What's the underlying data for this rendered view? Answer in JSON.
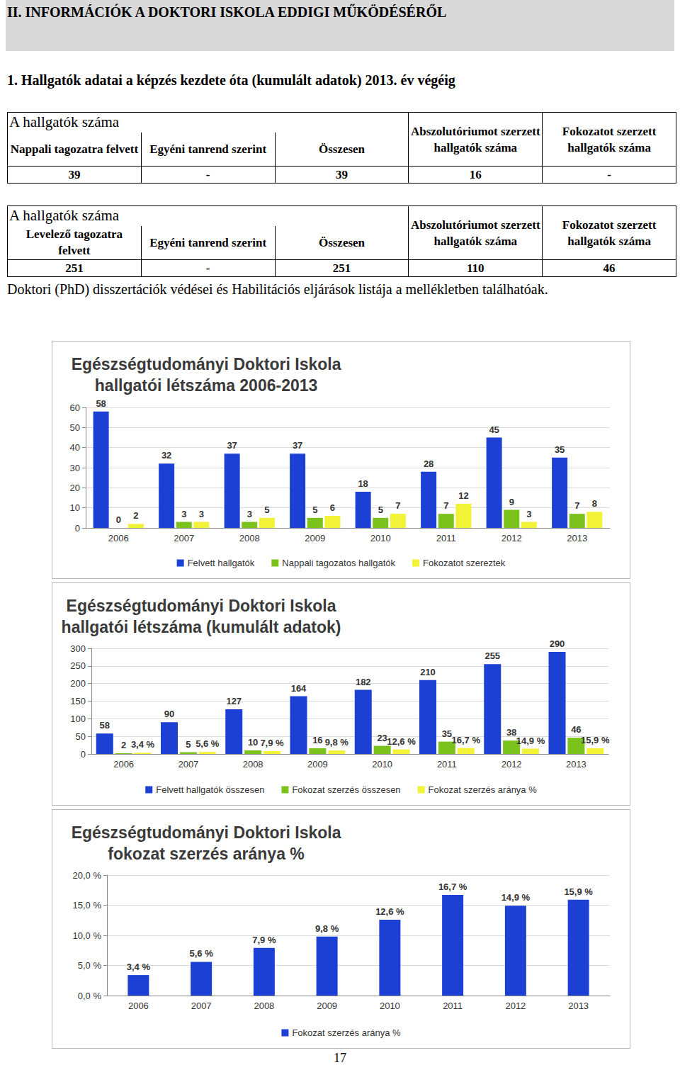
{
  "header": {
    "title": "II. INFORMÁCIÓK A DOKTORI ISKOLA EDDIGI MŰKÖDÉSÉRŐL"
  },
  "section_title": "1. Hallgatók adatai a képzés kezdete óta (kumulált adatok) 2013. év végéig",
  "tables": [
    {
      "title": "A hallgatók száma",
      "columns": [
        "Nappali tagozatra felvett",
        "Egyéni tanrend szerint",
        "Összesen",
        "Abszolutóriumot szerzett hallgatók száma",
        "Fokozatot szerzett hallgatók száma"
      ],
      "rows": [
        [
          "39",
          "-",
          "39",
          "16",
          "-"
        ]
      ]
    },
    {
      "title": "A hallgatók száma",
      "columns": [
        "Levelező tagozatra felvett",
        "Egyéni tanrend szerint",
        "Összesen",
        "Abszolutóriumot szerzett hallgatók száma",
        "Fokozatot szerzett hallgatók száma"
      ],
      "rows": [
        [
          "251",
          "-",
          "251",
          "110",
          "46"
        ]
      ]
    }
  ],
  "note": "Doktori (PhD) disszertációk védései és Habilitációs eljárások listája a mellékletben találhatóak.",
  "page_number": "17",
  "chart_data": [
    {
      "type": "bar",
      "title": "Egészségtudományi Doktori Iskola\nhallgatói létszáma 2006-2013",
      "categories": [
        "2006",
        "2007",
        "2008",
        "2009",
        "2010",
        "2011",
        "2012",
        "2013"
      ],
      "series": [
        {
          "name": "Felvett hallgatók",
          "color": "#1c3fd4",
          "values": [
            58,
            32,
            37,
            37,
            18,
            28,
            45,
            35
          ]
        },
        {
          "name": "Nappali tagozatos hallgatók",
          "color": "#7cc21c",
          "values": [
            0,
            3,
            3,
            5,
            5,
            7,
            9,
            7
          ]
        },
        {
          "name": "Fokozatot szereztek",
          "color": "#f2f236",
          "values": [
            2,
            3,
            5,
            6,
            7,
            12,
            3,
            8
          ]
        }
      ],
      "ylim": [
        0,
        60
      ],
      "yticks": [
        0,
        10,
        20,
        30,
        40,
        50,
        60
      ],
      "grid": true,
      "legend": "bottom",
      "data_labels": true
    },
    {
      "type": "bar",
      "title": "Egészségtudományi Doktori Iskola\nhallgatói létszáma (kumulált adatok)",
      "categories": [
        "2006",
        "2007",
        "2008",
        "2009",
        "2010",
        "2011",
        "2012",
        "2013"
      ],
      "series": [
        {
          "name": "Felvett hallgatók összesen",
          "color": "#1c3fd4",
          "values": [
            58,
            90,
            127,
            164,
            182,
            210,
            255,
            290
          ]
        },
        {
          "name": "Fokozat szerzés összesen",
          "color": "#7cc21c",
          "values": [
            2,
            5,
            10,
            16,
            23,
            35,
            38,
            46
          ]
        },
        {
          "name": "Fokozat szerzés aránya %",
          "color": "#f2f236",
          "values": [
            3.4,
            5.6,
            7.9,
            9.8,
            12.6,
            16.7,
            14.9,
            15.9
          ],
          "value_labels": [
            "3,4 %",
            "5,6 %",
            "7,9 %",
            "9,8 %",
            "12,6 %",
            "16,7 %",
            "14,9 %",
            "15,9 %"
          ]
        }
      ],
      "ylim": [
        0,
        300
      ],
      "yticks": [
        0,
        50,
        100,
        150,
        200,
        250,
        300
      ],
      "grid": true,
      "legend": "bottom",
      "data_labels": true
    },
    {
      "type": "bar",
      "title": "Egészségtudományi Doktori Iskola\nfokozat szerzés aránya %",
      "categories": [
        "2006",
        "2007",
        "2008",
        "2009",
        "2010",
        "2011",
        "2012",
        "2013"
      ],
      "series": [
        {
          "name": "Fokozat szerzés aránya %",
          "color": "#1c3fd4",
          "values": [
            3.4,
            5.6,
            7.9,
            9.8,
            12.6,
            16.7,
            14.9,
            15.9
          ],
          "value_labels": [
            "3,4 %",
            "5,6 %",
            "7,9 %",
            "9,8 %",
            "12,6 %",
            "16,7 %",
            "14,9 %",
            "15,9 %"
          ]
        }
      ],
      "ylim": [
        0,
        20
      ],
      "yticks": [
        {
          "value": 0,
          "label": "0,0 %"
        },
        {
          "value": 5,
          "label": "5,0 %"
        },
        {
          "value": 10,
          "label": "10,0 %"
        },
        {
          "value": 15,
          "label": "15,0 %"
        },
        {
          "value": 20,
          "label": "20,0 %"
        }
      ],
      "grid": true,
      "legend": "bottom",
      "data_labels": true
    }
  ]
}
